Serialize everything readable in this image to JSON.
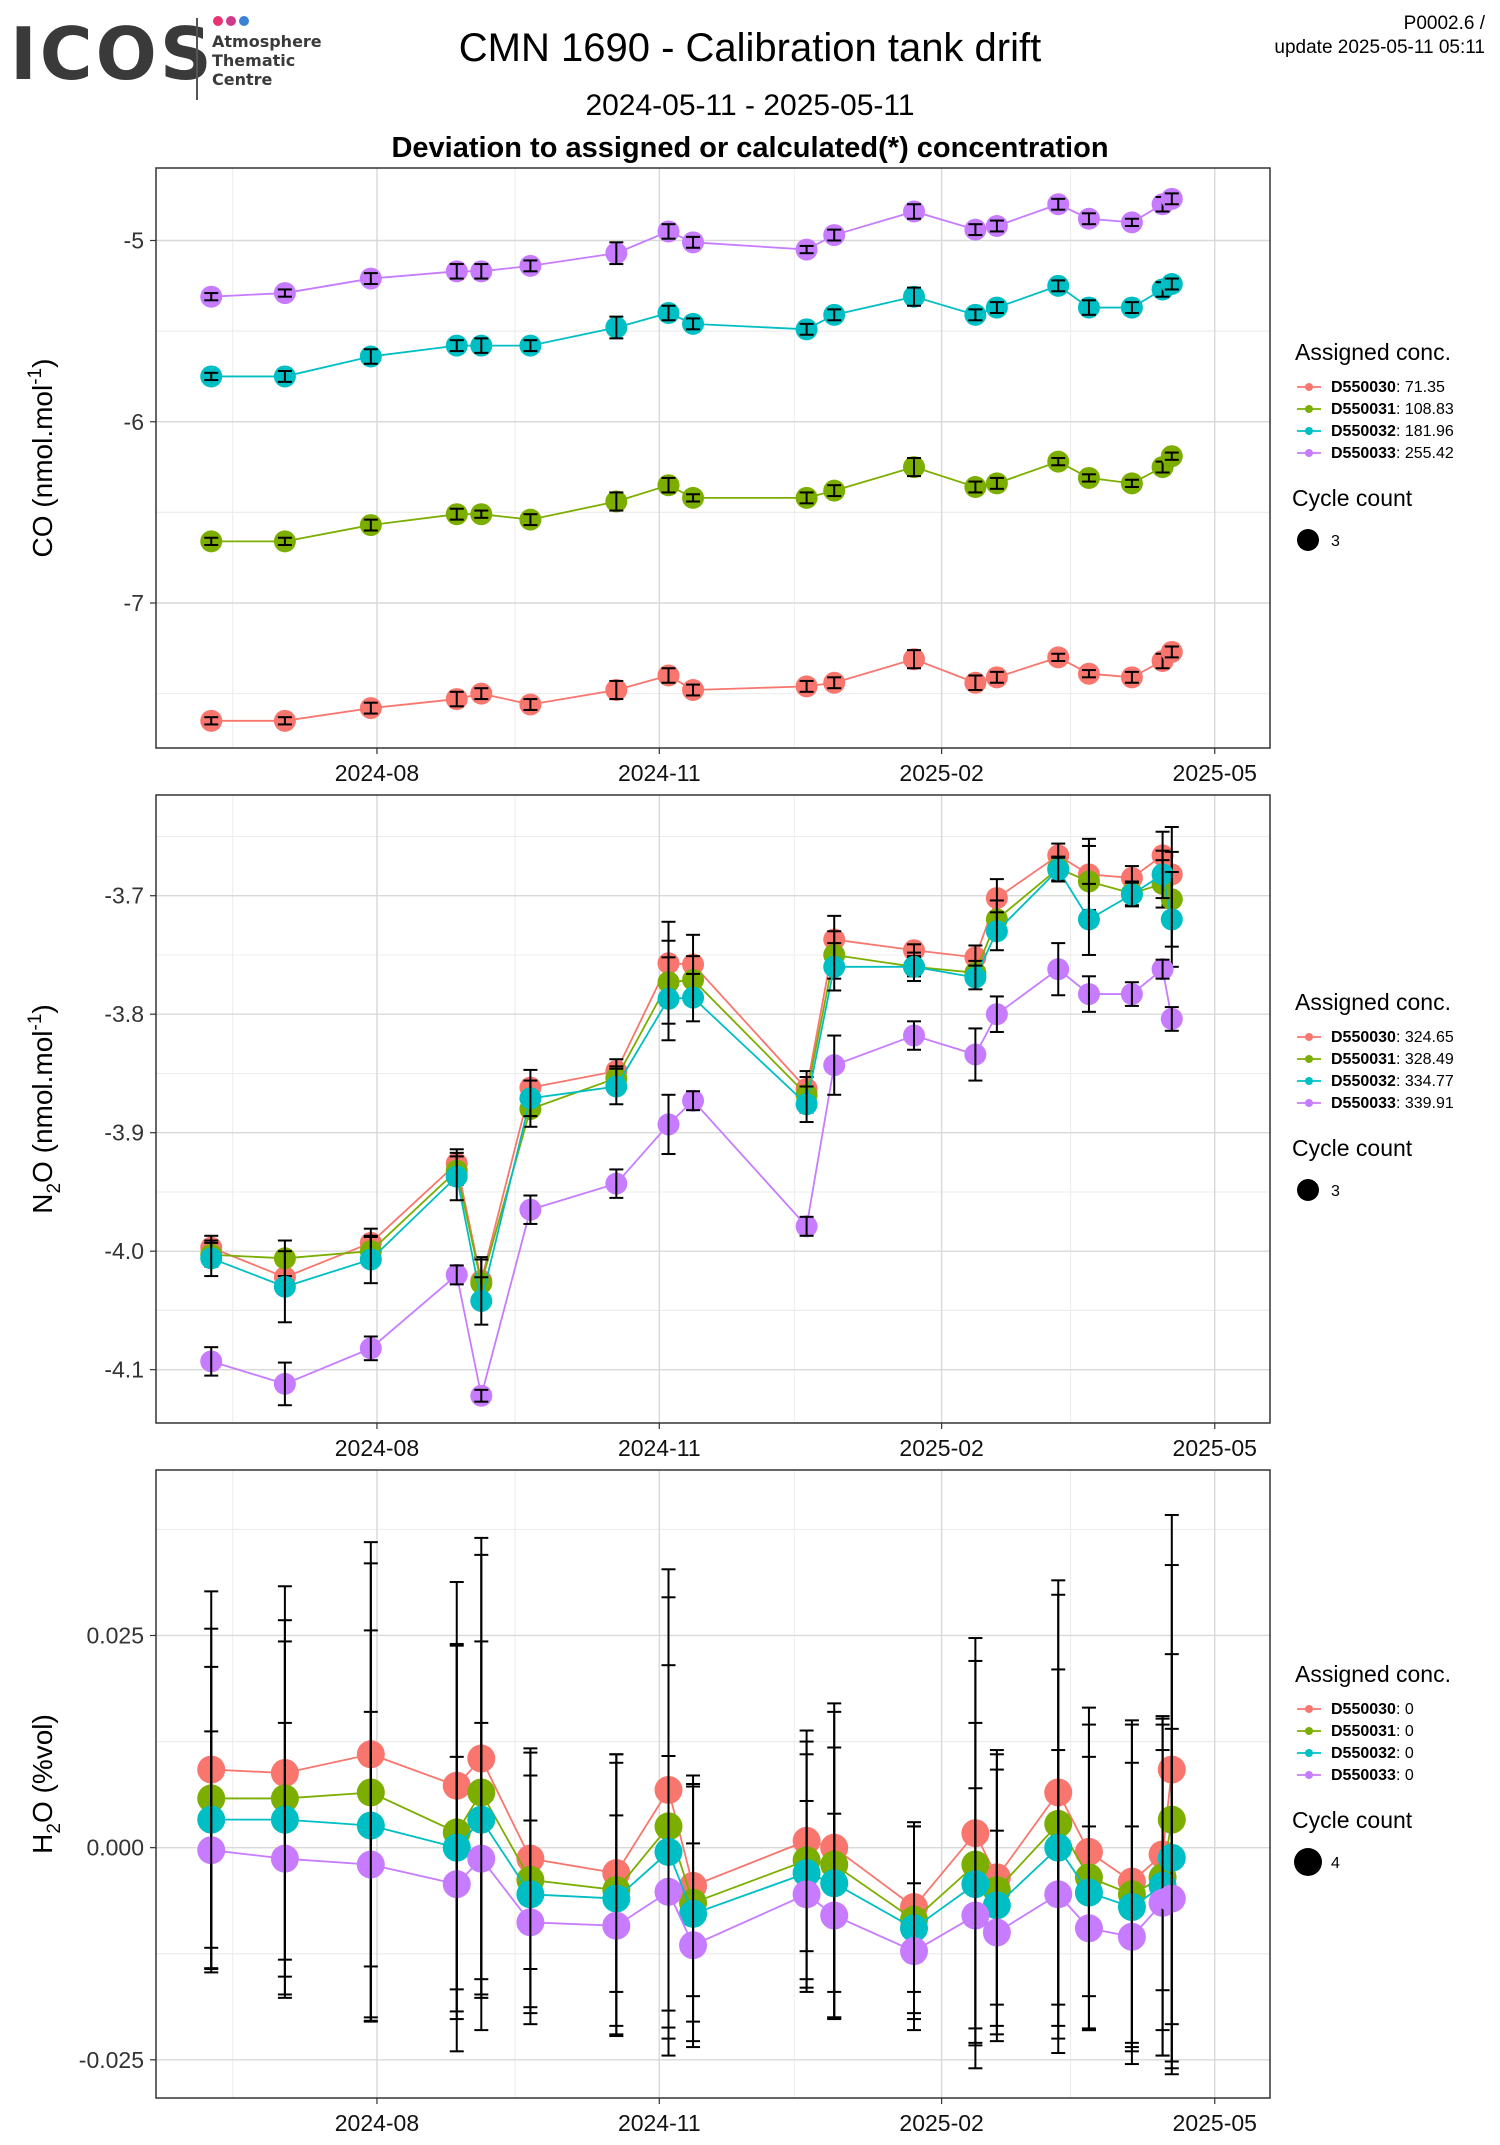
{
  "header": {
    "logo": {
      "text": "ICOS",
      "sub_lines": [
        "Atmosphere",
        "Thematic",
        "Centre"
      ],
      "dot_colors": [
        "#e8336f",
        "#d03a8c",
        "#3b82d6"
      ]
    },
    "title": "CMN 1690 - Calibration tank drift",
    "date_range": "2024-05-11 - 2025-05-11",
    "subtitle": "Deviation to assigned or calculated(*) concentration",
    "version_line1": "P0002.6 /",
    "version_line2": "update  2025-05-11 05:11"
  },
  "colors": {
    "D550030": "#F8766D",
    "D550031": "#7CAE00",
    "D550032": "#00BFC4",
    "D550033": "#C77CFF"
  },
  "chart_data": [
    {
      "type": "line",
      "ylabel": "CO (nmol.mol",
      "ylabel_sup": "-1",
      "ylabel_tail": ")",
      "yticks": [
        "-5",
        "-6",
        "-7"
      ],
      "ylim": [
        -7.8,
        -4.6
      ],
      "xticks": [
        "2024-08",
        "2024-11",
        "2025-02",
        "2025-05"
      ],
      "legend_title": "Assigned conc.",
      "legend_items": [
        {
          "name": "D550030",
          "value": ": 71.35"
        },
        {
          "name": "D550031",
          "value": ": 108.83"
        },
        {
          "name": "D550032",
          "value": ": 181.96"
        },
        {
          "name": "D550033",
          "value": ": 255.42"
        }
      ],
      "size_legend_title": "Cycle count",
      "size_legend_value": "3",
      "x": [
        "2024-06-08",
        "2024-07-02",
        "2024-07-30",
        "2024-08-27",
        "2024-09-04",
        "2024-09-20",
        "2024-10-18",
        "2024-11-04",
        "2024-11-12",
        "2024-12-19",
        "2024-12-28",
        "2025-01-23",
        "2025-02-12",
        "2025-02-19",
        "2025-03-11",
        "2025-03-21",
        "2025-04-04",
        "2025-04-14",
        "2025-04-17"
      ],
      "series": [
        {
          "name": "D550030",
          "values": [
            -7.65,
            -7.65,
            -7.58,
            -7.53,
            -7.5,
            -7.56,
            -7.48,
            -7.4,
            -7.48,
            -7.46,
            -7.44,
            -7.31,
            -7.44,
            -7.41,
            -7.3,
            -7.39,
            -7.41,
            -7.32,
            -7.27
          ],
          "err": [
            0.02,
            0.02,
            0.03,
            0.04,
            0.03,
            0.03,
            0.05,
            0.04,
            0.03,
            0.03,
            0.03,
            0.05,
            0.04,
            0.03,
            0.02,
            0.02,
            0.03,
            0.04,
            0.03
          ]
        },
        {
          "name": "D550031",
          "values": [
            -6.66,
            -6.66,
            -6.57,
            -6.51,
            -6.51,
            -6.54,
            -6.44,
            -6.35,
            -6.42,
            -6.42,
            -6.38,
            -6.25,
            -6.36,
            -6.34,
            -6.22,
            -6.31,
            -6.34,
            -6.25,
            -6.19
          ],
          "err": [
            0.02,
            0.02,
            0.03,
            0.03,
            0.02,
            0.03,
            0.05,
            0.04,
            0.02,
            0.03,
            0.03,
            0.05,
            0.03,
            0.03,
            0.02,
            0.02,
            0.02,
            0.03,
            0.02
          ]
        },
        {
          "name": "D550032",
          "values": [
            -5.75,
            -5.75,
            -5.64,
            -5.58,
            -5.58,
            -5.58,
            -5.48,
            -5.4,
            -5.46,
            -5.49,
            -5.41,
            -5.31,
            -5.41,
            -5.37,
            -5.25,
            -5.37,
            -5.37,
            -5.27,
            -5.24
          ],
          "err": [
            0.02,
            0.03,
            0.04,
            0.03,
            0.04,
            0.03,
            0.06,
            0.04,
            0.03,
            0.03,
            0.03,
            0.05,
            0.03,
            0.03,
            0.03,
            0.04,
            0.03,
            0.04,
            0.03
          ]
        },
        {
          "name": "D550033",
          "values": [
            -5.31,
            -5.29,
            -5.21,
            -5.17,
            -5.17,
            -5.14,
            -5.07,
            -4.95,
            -5.01,
            -5.05,
            -4.97,
            -4.84,
            -4.94,
            -4.92,
            -4.8,
            -4.88,
            -4.9,
            -4.8,
            -4.77
          ],
          "err": [
            0.02,
            0.02,
            0.03,
            0.04,
            0.04,
            0.03,
            0.06,
            0.04,
            0.03,
            0.02,
            0.03,
            0.04,
            0.03,
            0.03,
            0.03,
            0.03,
            0.02,
            0.04,
            0.03
          ]
        }
      ]
    },
    {
      "type": "line",
      "ylabel": "N",
      "ylabel_sub": "2",
      "ylabel_mid": "O (nmol.mol",
      "ylabel_sup": "-1",
      "ylabel_tail": ")",
      "yticks": [
        "-3.7",
        "-3.8",
        "-3.9",
        "-4.0",
        "-4.1"
      ],
      "ylim": [
        -4.145,
        -3.615
      ],
      "xticks": [
        "2024-08",
        "2024-11",
        "2025-02",
        "2025-05"
      ],
      "legend_title": "Assigned conc.",
      "legend_items": [
        {
          "name": "D550030",
          "value": ": 324.65"
        },
        {
          "name": "D550031",
          "value": ": 328.49"
        },
        {
          "name": "D550032",
          "value": ": 334.77"
        },
        {
          "name": "D550033",
          "value": ": 339.91"
        }
      ],
      "size_legend_title": "Cycle count",
      "size_legend_value": "3",
      "x": [
        "2024-06-08",
        "2024-07-02",
        "2024-07-30",
        "2024-08-27",
        "2024-09-04",
        "2024-09-20",
        "2024-10-18",
        "2024-11-04",
        "2024-11-12",
        "2024-12-19",
        "2024-12-28",
        "2025-01-23",
        "2025-02-12",
        "2025-02-19",
        "2025-03-11",
        "2025-03-21",
        "2025-04-04",
        "2025-04-14",
        "2025-04-17"
      ],
      "series": [
        {
          "name": "D550030",
          "values": [
            -3.997,
            -4.022,
            -3.993,
            -3.926,
            -4.025,
            -3.862,
            -3.848,
            -3.757,
            -3.758,
            -3.863,
            -3.737,
            -3.746,
            -3.752,
            -3.702,
            -3.666,
            -3.682,
            -3.685,
            -3.666,
            -3.682
          ],
          "err": [
            0.01,
            0.012,
            0.012,
            0.012,
            0.02,
            0.015,
            0.01,
            0.035,
            0.025,
            0.015,
            0.02,
            0.005,
            0.01,
            0.016,
            0.01,
            0.03,
            0.01,
            0.02,
            0.04
          ]
        },
        {
          "name": "D550031",
          "values": [
            -4.003,
            -4.006,
            -4.0,
            -3.932,
            -4.027,
            -3.88,
            -3.854,
            -3.773,
            -3.771,
            -3.868,
            -3.75,
            -3.76,
            -3.765,
            -3.72,
            -3.677,
            -3.688,
            -3.698,
            -3.69,
            -3.703
          ],
          "err": [
            0.01,
            0.015,
            0.012,
            0.012,
            0.02,
            0.015,
            0.01,
            0.035,
            0.02,
            0.015,
            0.02,
            0.008,
            0.01,
            0.016,
            0.01,
            0.03,
            0.01,
            0.02,
            0.04
          ]
        },
        {
          "name": "D550032",
          "values": [
            -4.006,
            -4.03,
            -4.007,
            -3.937,
            -4.042,
            -3.871,
            -3.861,
            -3.787,
            -3.786,
            -3.876,
            -3.76,
            -3.76,
            -3.769,
            -3.73,
            -3.678,
            -3.72,
            -3.699,
            -3.682,
            -3.72
          ],
          "err": [
            0.015,
            0.03,
            0.02,
            0.02,
            0.02,
            0.015,
            0.015,
            0.035,
            0.02,
            0.015,
            0.02,
            0.012,
            0.01,
            0.016,
            0.01,
            0.03,
            0.01,
            0.02,
            0.04
          ]
        },
        {
          "name": "D550033",
          "values": [
            -4.093,
            -4.112,
            -4.082,
            -4.02,
            -4.122,
            -3.965,
            -3.943,
            -3.893,
            -3.873,
            -3.979,
            -3.843,
            -3.818,
            -3.834,
            -3.8,
            -3.762,
            -3.783,
            -3.783,
            -3.762,
            -3.804
          ],
          "err": [
            0.012,
            0.018,
            0.01,
            0.008,
            0.005,
            0.012,
            0.012,
            0.025,
            0.008,
            0.008,
            0.025,
            0.012,
            0.022,
            0.015,
            0.022,
            0.015,
            0.01,
            0.008,
            0.01
          ]
        }
      ]
    },
    {
      "type": "line",
      "ylabel": "H",
      "ylabel_sub": "2",
      "ylabel_mid": "O (%vol)",
      "yticks": [
        "0.025",
        "0.000",
        "-0.025"
      ],
      "ylim": [
        -0.0295,
        0.0445
      ],
      "xticks": [
        "2024-08",
        "2024-11",
        "2025-02",
        "2025-05"
      ],
      "legend_title": "Assigned conc.",
      "legend_items": [
        {
          "name": "D550030",
          "value": ": 0"
        },
        {
          "name": "D550031",
          "value": ": 0"
        },
        {
          "name": "D550032",
          "value": ": 0"
        },
        {
          "name": "D550033",
          "value": ": 0"
        }
      ],
      "size_legend_title": "Cycle count",
      "size_legend_value": "4",
      "x": [
        "2024-06-08",
        "2024-07-02",
        "2024-07-30",
        "2024-08-27",
        "2024-09-04",
        "2024-09-20",
        "2024-10-18",
        "2024-11-04",
        "2024-11-12",
        "2024-12-19",
        "2024-12-28",
        "2025-01-23",
        "2025-02-12",
        "2025-02-19",
        "2025-03-11",
        "2025-03-21",
        "2025-04-04",
        "2025-04-14",
        "2025-04-17"
      ],
      "series": [
        {
          "name": "D550030",
          "values": [
            0.0092,
            0.0088,
            0.011,
            0.0073,
            0.0105,
            -0.0013,
            -0.003,
            0.0068,
            -0.0045,
            0.0008,
            0.0,
            -0.007,
            0.0017,
            -0.0035,
            0.0065,
            -0.0005,
            -0.004,
            -0.0008,
            0.0092
          ],
          "err": [
            0.021,
            0.022,
            0.025,
            0.024,
            0.026,
            0.013,
            0.014,
            0.026,
            0.013,
            0.013,
            0.017,
            0.01,
            0.023,
            0.015,
            0.025,
            0.017,
            0.019,
            0.016,
            0.03
          ]
        },
        {
          "name": "D550031",
          "values": [
            0.0058,
            0.0058,
            0.0065,
            0.0018,
            0.0065,
            -0.0038,
            -0.005,
            0.0025,
            -0.0065,
            -0.0015,
            -0.002,
            -0.0085,
            -0.002,
            -0.005,
            0.0028,
            -0.0035,
            -0.0055,
            -0.0035,
            0.0033
          ],
          "err": [
            0.02,
            0.021,
            0.027,
            0.022,
            0.028,
            0.015,
            0.016,
            0.027,
            0.014,
            0.014,
            0.018,
            0.011,
            0.024,
            0.016,
            0.027,
            0.018,
            0.02,
            0.018,
            0.03
          ]
        },
        {
          "name": "D550032",
          "values": [
            0.0033,
            0.0033,
            0.0026,
            0.0,
            0.0033,
            -0.0055,
            -0.006,
            -0.0005,
            -0.0078,
            -0.003,
            -0.0042,
            -0.0095,
            -0.0043,
            -0.0068,
            0.0,
            -0.0053,
            -0.007,
            -0.0045,
            -0.0012
          ],
          "err": [
            0.018,
            0.021,
            0.023,
            0.024,
            0.021,
            0.014,
            0.016,
            0.022,
            0.015,
            0.014,
            0.016,
            0.012,
            0.019,
            0.016,
            0.021,
            0.016,
            0.017,
            0.02,
            0.024
          ]
        },
        {
          "name": "D550033",
          "values": [
            -0.0003,
            -0.0013,
            -0.002,
            -0.0043,
            -0.0013,
            -0.0088,
            -0.0092,
            -0.0052,
            -0.0115,
            -0.0055,
            -0.008,
            -0.0122,
            -0.008,
            -0.01,
            -0.0055,
            -0.0095,
            -0.0105,
            -0.0065,
            -0.006
          ],
          "err": [
            0.014,
            0.016,
            0.018,
            0.015,
            0.016,
            0.012,
            0.013,
            0.016,
            0.012,
            0.011,
            0.012,
            0.008,
            0.015,
            0.012,
            0.017,
            0.012,
            0.013,
            0.018,
            0.02
          ]
        }
      ]
    }
  ]
}
